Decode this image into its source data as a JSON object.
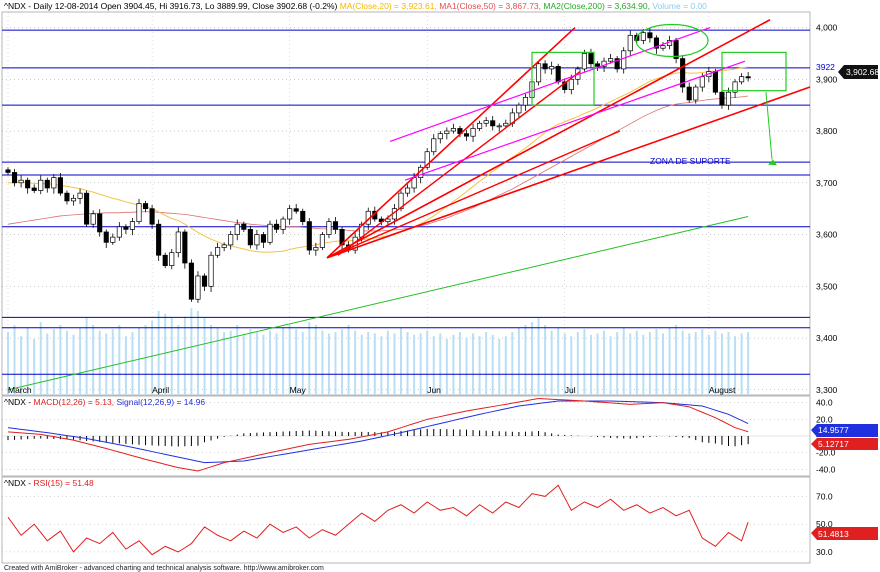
{
  "header": {
    "symbol": "^NDX",
    "desc": " - Daily 12-08-2014 Open 3904.45, Hi 3916.73, Lo 3889.99, Close 3902.68 (-0.2%) ",
    "ma20": "MA(Close,20) = 3,923.61,",
    "ma50": "MA1(Close,50) = 3,867.73,",
    "ma200": "MA2(Close,200) = 3,634.90,",
    "volume": "Volume = 0.00"
  },
  "macd_header": {
    "symbol": "^NDX",
    "macd": "MACD(12,26) = 5.13,",
    "signal": "Signal(12,26,9) = 14.96"
  },
  "rsi_header": {
    "symbol": "^NDX",
    "rsi": "RSI(15) = 51.48"
  },
  "footer": "Created with AmiBroker - advanced charting and technical analysis software. http://www.amibroker.com",
  "annotations": {
    "support_zone": "ZONA DE SUPORTE",
    "level_3922": "3922"
  },
  "badges": {
    "price": "3,902.68",
    "macd_signal": "14.9577",
    "macd": "5.12717",
    "rsi": "51.4813"
  },
  "colors": {
    "up": "#ffffff",
    "down": "#000000",
    "ma20": "#f5c242",
    "ma50": "#e07070",
    "ma200": "#22c022",
    "macd": "#e02020",
    "signal": "#2030e0",
    "rsi": "#e02020",
    "hline": "#0000cc",
    "trend_red": "#ff0000",
    "trend_magenta": "#ff00ff",
    "box": "#22cc22"
  },
  "chart_data": [
    {
      "type": "candlestick",
      "title": "^NDX Daily",
      "ylim": [
        3290,
        4030
      ],
      "y_ticks": [
        3300,
        3400,
        3500,
        3600,
        3700,
        3800,
        3900,
        4000
      ],
      "y_tick_labels": [
        "3,300",
        "3,400",
        "3,500",
        "3,600",
        "3,700",
        "3,800",
        "3,900",
        "4,000"
      ],
      "x_labels": [
        {
          "label": "March",
          "index": 0
        },
        {
          "label": "April",
          "index": 22
        },
        {
          "label": "May",
          "index": 43
        },
        {
          "label": "Jun",
          "index": 64
        },
        {
          "label": "Jul",
          "index": 85
        },
        {
          "label": "August",
          "index": 107
        }
      ],
      "closes": [
        3720,
        3700,
        3705,
        3690,
        3685,
        3705,
        3690,
        3710,
        3680,
        3665,
        3670,
        3680,
        3620,
        3640,
        3605,
        3585,
        3595,
        3615,
        3610,
        3625,
        3660,
        3650,
        3620,
        3560,
        3540,
        3565,
        3605,
        3545,
        3475,
        3520,
        3500,
        3560,
        3575,
        3580,
        3600,
        3620,
        3610,
        3580,
        3600,
        3585,
        3620,
        3610,
        3630,
        3650,
        3645,
        3625,
        3570,
        3575,
        3600,
        3625,
        3610,
        3580,
        3570,
        3595,
        3620,
        3645,
        3630,
        3625,
        3630,
        3650,
        3680,
        3690,
        3710,
        3730,
        3760,
        3785,
        3795,
        3800,
        3805,
        3795,
        3790,
        3805,
        3815,
        3820,
        3810,
        3810,
        3815,
        3835,
        3850,
        3865,
        3895,
        3930,
        3920,
        3925,
        3895,
        3880,
        3900,
        3920,
        3950,
        3930,
        3925,
        3935,
        3940,
        3920,
        3955,
        3985,
        3975,
        3990,
        3980,
        3960,
        3965,
        3975,
        3940,
        3885,
        3860,
        3885,
        3905,
        3915,
        3875,
        3850,
        3875,
        3895,
        3905,
        3902.68
      ],
      "ma20": [
        3700,
        3700,
        3701,
        3700,
        3699,
        3699,
        3698,
        3697,
        3695,
        3693,
        3691,
        3689,
        3685,
        3682,
        3678,
        3674,
        3670,
        3667,
        3663,
        3660,
        3657,
        3654,
        3650,
        3644,
        3637,
        3631,
        3627,
        3620,
        3612,
        3604,
        3597,
        3591,
        3586,
        3581,
        3578,
        3575,
        3572,
        3569,
        3567,
        3566,
        3566,
        3567,
        3568,
        3571,
        3574,
        3576,
        3578,
        3580,
        3583,
        3585,
        3587,
        3588,
        3588,
        3589,
        3590,
        3592,
        3593,
        3595,
        3598,
        3602,
        3606,
        3610,
        3615,
        3621,
        3628,
        3636,
        3645,
        3654,
        3664,
        3673,
        3683,
        3693,
        3703,
        3712,
        3722,
        3731,
        3740,
        3749,
        3758,
        3767,
        3777,
        3787,
        3797,
        3806,
        3813,
        3818,
        3823,
        3828,
        3834,
        3839,
        3845,
        3851,
        3857,
        3863,
        3869,
        3875,
        3882,
        3889,
        3896,
        3901,
        3905,
        3909,
        3912,
        3913,
        3912,
        3912,
        3913,
        3915,
        3916,
        3917,
        3918,
        3920,
        3922,
        3923.61
      ],
      "ma50": [
        3620,
        3622,
        3624,
        3626,
        3628,
        3630,
        3632,
        3634,
        3636,
        3637,
        3638,
        3639,
        3640,
        3641,
        3641,
        3642,
        3642,
        3642,
        3643,
        3643,
        3644,
        3644,
        3644,
        3643,
        3642,
        3641,
        3640,
        3639,
        3637,
        3635,
        3633,
        3631,
        3629,
        3627,
        3625,
        3623,
        3622,
        3620,
        3619,
        3618,
        3617,
        3616,
        3615,
        3615,
        3615,
        3614,
        3613,
        3612,
        3611,
        3611,
        3610,
        3609,
        3608,
        3607,
        3607,
        3607,
        3607,
        3607,
        3608,
        3609,
        3610,
        3612,
        3614,
        3617,
        3620,
        3624,
        3628,
        3632,
        3637,
        3642,
        3647,
        3652,
        3658,
        3664,
        3670,
        3676,
        3682,
        3688,
        3695,
        3702,
        3709,
        3716,
        3723,
        3730,
        3737,
        3744,
        3751,
        3758,
        3765,
        3772,
        3779,
        3786,
        3793,
        3800,
        3807,
        3814,
        3821,
        3828,
        3834,
        3840,
        3845,
        3849,
        3852,
        3854,
        3855,
        3857,
        3859,
        3861,
        3862,
        3863,
        3864,
        3865,
        3866,
        3867.73
      ],
      "ma200_start": 3300,
      "ma200_end": 3634.9,
      "horizontal_levels": [
        3995,
        3922,
        3850,
        3740,
        3715,
        3615,
        3440,
        3420,
        3330
      ],
      "support_zone": [
        3715,
        3740
      ],
      "volume_relative": [
        0.45,
        0.5,
        0.42,
        0.48,
        0.4,
        0.52,
        0.44,
        0.47,
        0.5,
        0.46,
        0.43,
        0.48,
        0.55,
        0.5,
        0.46,
        0.44,
        0.47,
        0.5,
        0.42,
        0.45,
        0.48,
        0.5,
        0.53,
        0.6,
        0.58,
        0.55,
        0.5,
        0.56,
        0.62,
        0.6,
        0.55,
        0.5,
        0.48,
        0.45,
        0.46,
        0.5,
        0.44,
        0.47,
        0.45,
        0.43,
        0.46,
        0.44,
        0.48,
        0.5,
        0.47,
        0.45,
        0.52,
        0.5,
        0.46,
        0.44,
        0.45,
        0.47,
        0.5,
        0.46,
        0.43,
        0.45,
        0.44,
        0.42,
        0.46,
        0.44,
        0.48,
        0.45,
        0.43,
        0.44,
        0.46,
        0.42,
        0.44,
        0.4,
        0.43,
        0.45,
        0.41,
        0.44,
        0.42,
        0.45,
        0.43,
        0.4,
        0.42,
        0.45,
        0.48,
        0.5,
        0.52,
        0.55,
        0.5,
        0.46,
        0.48,
        0.44,
        0.42,
        0.45,
        0.47,
        0.43,
        0.44,
        0.46,
        0.42,
        0.45,
        0.48,
        0.44,
        0.46,
        0.43,
        0.45,
        0.47,
        0.44,
        0.48,
        0.5,
        0.46,
        0.44,
        0.45,
        0.47,
        0.43,
        0.46,
        0.44,
        0.45,
        0.42,
        0.44,
        0.45
      ]
    },
    {
      "type": "line",
      "title": "MACD(12,26)",
      "ylim": [
        -48,
        48
      ],
      "y_ticks": [
        40,
        20,
        0,
        -20,
        -40
      ],
      "y_tick_labels": [
        "40.0",
        "20.0",
        "--",
        "-20.0",
        "-40.0"
      ],
      "macd_last": 5.13,
      "signal_last": 14.96
    },
    {
      "type": "line",
      "title": "RSI(15)",
      "ylim": [
        22,
        84
      ],
      "y_ticks": [
        70,
        50,
        30
      ],
      "y_tick_labels": [
        "70.0",
        "50.0",
        "30.0"
      ],
      "rsi_last": 51.48
    }
  ]
}
